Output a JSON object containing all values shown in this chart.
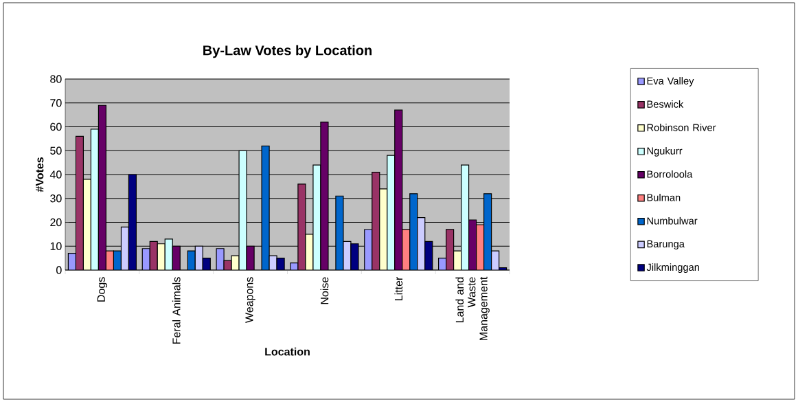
{
  "chart_data": {
    "type": "bar",
    "title": "By-Law Votes by Location",
    "xlabel": "Location",
    "ylabel": "#Votes",
    "categories": [
      "Dogs",
      "Feral Animals",
      "Weapons",
      "Noise",
      "Litter",
      "Land and Waste Management"
    ],
    "series": [
      {
        "name": "Eva Valley",
        "color": "#9999ff",
        "values": [
          7,
          9,
          9,
          3,
          17,
          5
        ]
      },
      {
        "name": "Beswick",
        "color": "#993366",
        "values": [
          56,
          12,
          4,
          36,
          41,
          17
        ]
      },
      {
        "name": "Robinson River",
        "color": "#ffffcc",
        "values": [
          38,
          11,
          6,
          15,
          34,
          8
        ]
      },
      {
        "name": "Ngukurr",
        "color": "#ccffff",
        "values": [
          59,
          13,
          50,
          44,
          48,
          44
        ]
      },
      {
        "name": "Borroloola",
        "color": "#660066",
        "values": [
          69,
          10,
          10,
          62,
          67,
          21
        ]
      },
      {
        "name": "Bulman",
        "color": "#ff8080",
        "values": [
          8,
          null,
          null,
          null,
          17,
          19
        ]
      },
      {
        "name": "Numbulwar",
        "color": "#0066cc",
        "values": [
          8,
          8,
          52,
          31,
          32,
          32
        ]
      },
      {
        "name": "Barunga",
        "color": "#ccccff",
        "values": [
          18,
          10,
          6,
          12,
          22,
          8
        ]
      },
      {
        "name": "Jilkminggan",
        "color": "#000080",
        "values": [
          40,
          5,
          5,
          11,
          12,
          1
        ]
      }
    ],
    "ylim": [
      0,
      80
    ],
    "yticks": [
      0,
      10,
      20,
      30,
      40,
      50,
      60,
      70,
      80
    ],
    "grid": "y",
    "legend": "right"
  }
}
